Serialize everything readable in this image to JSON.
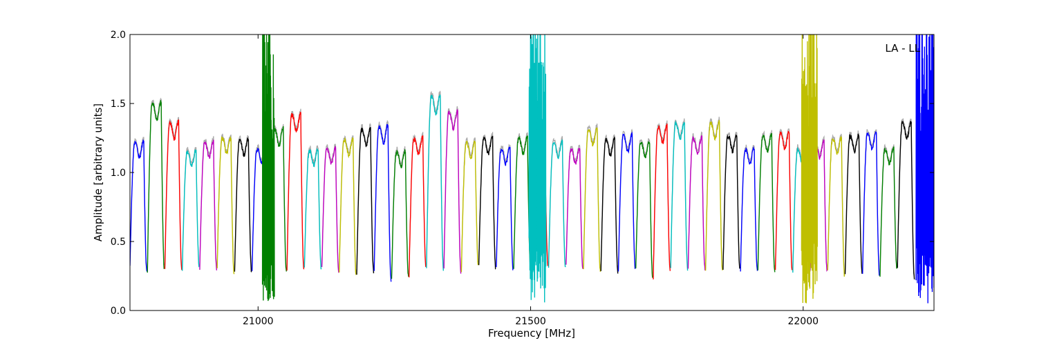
{
  "chart_data": {
    "type": "line",
    "title": "",
    "annotation": "LA - LL",
    "xlabel": "Frequency [MHz]",
    "ylabel": "Amplitude [arbitrary units]",
    "xlim": [
      20765,
      22240
    ],
    "ylim": [
      0.0,
      2.0
    ],
    "xticks": [
      21000,
      21500,
      22000
    ],
    "xtick_labels": [
      "21000",
      "21500",
      "22000"
    ],
    "yticks": [
      0.0,
      0.5,
      1.0,
      1.5,
      2.0
    ],
    "ytick_labels": [
      "0.0",
      "0.5",
      "1.0",
      "1.5",
      "2.0"
    ],
    "grid": false,
    "background_color": "#aaaaaa",
    "colors": [
      "#0000ff",
      "#008000",
      "#ff0000",
      "#00bfbf",
      "#bf00bf",
      "#bfbf00",
      "#000000"
    ],
    "segment_width_mhz": 32,
    "segments": [
      {
        "x0": 20765,
        "peak": 1.25,
        "start": 0.32,
        "end": 0.28,
        "color": "#0000ff"
      },
      {
        "x0": 20797,
        "peak": 1.55,
        "start": 0.28,
        "end": 0.3,
        "color": "#008000"
      },
      {
        "x0": 20829,
        "peak": 1.4,
        "start": 0.3,
        "end": 0.3,
        "color": "#ff0000"
      },
      {
        "x0": 20861,
        "peak": 1.18,
        "start": 0.3,
        "end": 0.31,
        "color": "#00bfbf"
      },
      {
        "x0": 20893,
        "peak": 1.25,
        "start": 0.31,
        "end": 0.3,
        "color": "#bf00bf"
      },
      {
        "x0": 20925,
        "peak": 1.28,
        "start": 0.3,
        "end": 0.27,
        "color": "#bfbf00"
      },
      {
        "x0": 20957,
        "peak": 1.27,
        "start": 0.27,
        "end": 0.28,
        "color": "#000000"
      },
      {
        "x0": 20989,
        "peak": 1.2,
        "start": 0.28,
        "end": 0.29,
        "color": "#0000ff"
      },
      {
        "x0": 21021,
        "peak": 1.35,
        "start": 0.29,
        "end": 0.28,
        "color": "#008000"
      },
      {
        "x0": 21053,
        "peak": 1.46,
        "start": 0.28,
        "end": 0.3,
        "color": "#ff0000"
      },
      {
        "x0": 21085,
        "peak": 1.19,
        "start": 0.3,
        "end": 0.3,
        "color": "#00bfbf"
      },
      {
        "x0": 21117,
        "peak": 1.2,
        "start": 0.3,
        "end": 0.28,
        "color": "#bf00bf"
      },
      {
        "x0": 21149,
        "peak": 1.27,
        "start": 0.28,
        "end": 0.25,
        "color": "#bfbf00"
      },
      {
        "x0": 21181,
        "peak": 1.35,
        "start": 0.25,
        "end": 0.28,
        "color": "#000000"
      },
      {
        "x0": 21213,
        "peak": 1.37,
        "start": 0.28,
        "end": 0.22,
        "color": "#0000ff"
      },
      {
        "x0": 21245,
        "peak": 1.18,
        "start": 0.22,
        "end": 0.25,
        "color": "#008000"
      },
      {
        "x0": 21277,
        "peak": 1.28,
        "start": 0.25,
        "end": 0.32,
        "color": "#ff0000"
      },
      {
        "x0": 21309,
        "peak": 1.6,
        "start": 0.32,
        "end": 0.3,
        "color": "#00bfbf"
      },
      {
        "x0": 21341,
        "peak": 1.48,
        "start": 0.3,
        "end": 0.28,
        "color": "#bf00bf"
      },
      {
        "x0": 21373,
        "peak": 1.25,
        "start": 0.28,
        "end": 0.32,
        "color": "#bfbf00"
      },
      {
        "x0": 21405,
        "peak": 1.28,
        "start": 0.32,
        "end": 0.3,
        "color": "#000000"
      },
      {
        "x0": 21437,
        "peak": 1.2,
        "start": 0.3,
        "end": 0.3,
        "color": "#0000ff"
      },
      {
        "x0": 21469,
        "peak": 1.28,
        "start": 0.3,
        "end": 0.3,
        "color": "#008000"
      },
      {
        "x0": 21501,
        "peak": 1.2,
        "start": 0.3,
        "end": 0.32,
        "color": "#ff0000"
      },
      {
        "x0": 21533,
        "peak": 1.25,
        "start": 0.32,
        "end": 0.32,
        "color": "#00bfbf"
      },
      {
        "x0": 21565,
        "peak": 1.2,
        "start": 0.32,
        "end": 0.3,
        "color": "#bf00bf"
      },
      {
        "x0": 21597,
        "peak": 1.35,
        "start": 0.3,
        "end": 0.28,
        "color": "#bfbf00"
      },
      {
        "x0": 21629,
        "peak": 1.27,
        "start": 0.28,
        "end": 0.28,
        "color": "#000000"
      },
      {
        "x0": 21661,
        "peak": 1.3,
        "start": 0.28,
        "end": 0.3,
        "color": "#0000ff"
      },
      {
        "x0": 21693,
        "peak": 1.25,
        "start": 0.3,
        "end": 0.23,
        "color": "#008000"
      },
      {
        "x0": 21725,
        "peak": 1.37,
        "start": 0.23,
        "end": 0.3,
        "color": "#ff0000"
      },
      {
        "x0": 21757,
        "peak": 1.4,
        "start": 0.3,
        "end": 0.3,
        "color": "#00bfbf"
      },
      {
        "x0": 21789,
        "peak": 1.28,
        "start": 0.3,
        "end": 0.3,
        "color": "#bf00bf"
      },
      {
        "x0": 21821,
        "peak": 1.4,
        "start": 0.3,
        "end": 0.29,
        "color": "#bfbf00"
      },
      {
        "x0": 21853,
        "peak": 1.3,
        "start": 0.29,
        "end": 0.29,
        "color": "#000000"
      },
      {
        "x0": 21885,
        "peak": 1.2,
        "start": 0.29,
        "end": 0.3,
        "color": "#0000ff"
      },
      {
        "x0": 21917,
        "peak": 1.3,
        "start": 0.3,
        "end": 0.28,
        "color": "#008000"
      },
      {
        "x0": 21949,
        "peak": 1.32,
        "start": 0.28,
        "end": 0.28,
        "color": "#ff0000"
      },
      {
        "x0": 21981,
        "peak": 1.2,
        "start": 0.28,
        "end": 0.3,
        "color": "#00bfbf"
      },
      {
        "x0": 22013,
        "peak": 1.25,
        "start": 0.3,
        "end": 0.28,
        "color": "#bf00bf"
      },
      {
        "x0": 22045,
        "peak": 1.28,
        "start": 0.28,
        "end": 0.25,
        "color": "#bfbf00"
      },
      {
        "x0": 22077,
        "peak": 1.3,
        "start": 0.25,
        "end": 0.28,
        "color": "#000000"
      },
      {
        "x0": 22109,
        "peak": 1.32,
        "start": 0.28,
        "end": 0.25,
        "color": "#0000ff"
      },
      {
        "x0": 22141,
        "peak": 1.2,
        "start": 0.25,
        "end": 0.3,
        "color": "#008000"
      },
      {
        "x0": 22173,
        "peak": 1.4,
        "start": 0.3,
        "end": 0.24,
        "color": "#000000"
      }
    ],
    "rfi": [
      {
        "x": 21016,
        "color": "#008000"
      },
      {
        "x": 21022,
        "color": "#008000"
      },
      {
        "x": 21505,
        "color": "#00bfbf"
      },
      {
        "x": 21520,
        "color": "#00bfbf"
      },
      {
        "x": 22005,
        "color": "#bfbf00"
      },
      {
        "x": 22018,
        "color": "#bfbf00"
      },
      {
        "x": 22215,
        "color": "#0000ff"
      },
      {
        "x": 22232,
        "color": "#0000ff"
      }
    ]
  }
}
